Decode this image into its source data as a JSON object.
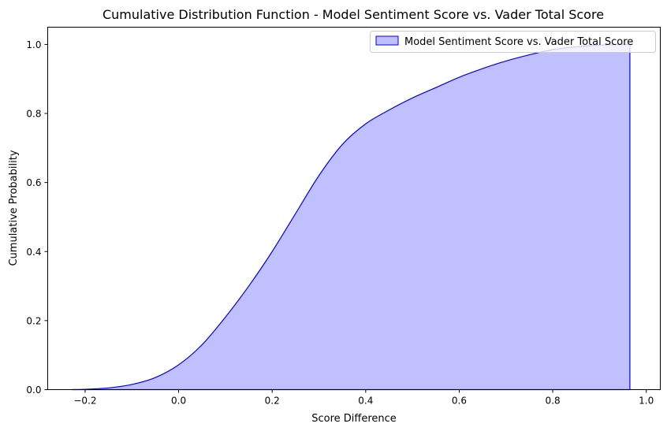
{
  "chart_data": {
    "type": "area",
    "title": "Cumulative Distribution Function - Model Sentiment Score vs. Vader Total Score",
    "xlabel": "Score Difference",
    "ylabel": "Cumulative Probability",
    "xlim": [
      -0.28,
      1.03
    ],
    "ylim": [
      0.0,
      1.05
    ],
    "x_ticks": [
      -0.2,
      0.0,
      0.2,
      0.4,
      0.6,
      0.8,
      1.0
    ],
    "x_tick_labels": [
      "−0.2",
      "0.0",
      "0.2",
      "0.4",
      "0.6",
      "0.8",
      "1.0"
    ],
    "y_ticks": [
      0.0,
      0.2,
      0.4,
      0.6,
      0.8,
      1.0
    ],
    "y_tick_labels": [
      "0.0",
      "0.2",
      "0.4",
      "0.6",
      "0.8",
      "1.0"
    ],
    "grid": false,
    "legend": {
      "position": "top-right"
    },
    "series": [
      {
        "name": "Model Sentiment Score vs. Vader Total Score",
        "line_color": "#0000ff",
        "fill_color": "#c0c0ff",
        "x": [
          -0.228,
          -0.2,
          -0.15,
          -0.1,
          -0.05,
          0.0,
          0.05,
          0.1,
          0.15,
          0.2,
          0.25,
          0.3,
          0.35,
          0.4,
          0.45,
          0.5,
          0.55,
          0.6,
          0.65,
          0.7,
          0.75,
          0.8,
          0.85,
          0.9,
          0.95,
          0.965
        ],
        "y": [
          0.0,
          0.001,
          0.005,
          0.015,
          0.035,
          0.072,
          0.13,
          0.21,
          0.3,
          0.4,
          0.51,
          0.62,
          0.71,
          0.77,
          0.81,
          0.845,
          0.875,
          0.905,
          0.93,
          0.952,
          0.97,
          0.985,
          0.993,
          0.998,
          1.0,
          1.0
        ]
      }
    ]
  }
}
